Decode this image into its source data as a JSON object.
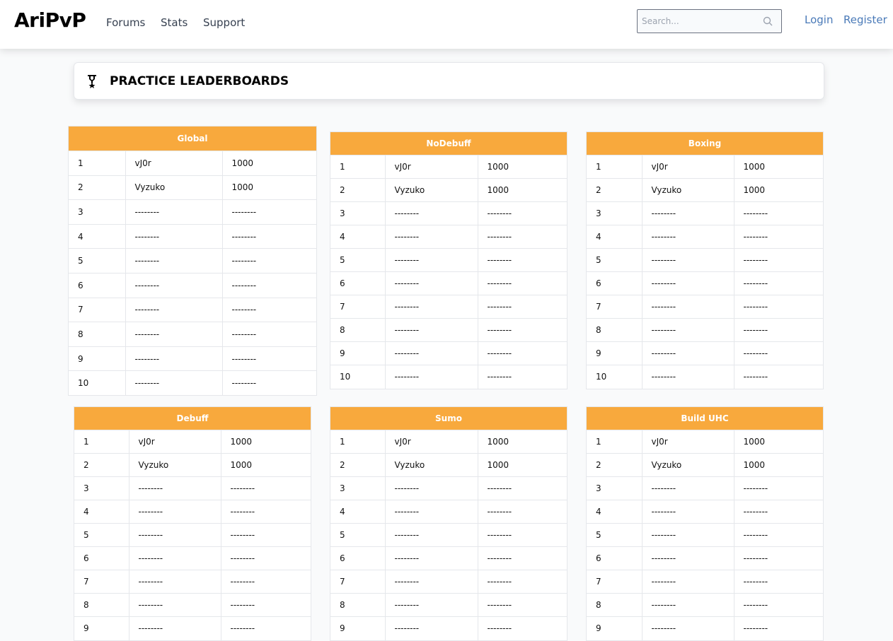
{
  "nav": {
    "logo": "AriPvP",
    "links": [
      "Forums",
      "Stats",
      "Support"
    ],
    "search_placeholder": "Search...",
    "login": "Login",
    "register": "Register"
  },
  "page_title": "PRACTICE LEADERBOARDS",
  "colors": {
    "header": "#f8a93d",
    "link": "#4a7ab8"
  },
  "boards": [
    {
      "name": "Global",
      "rows": [
        [
          "1",
          "vJ0r",
          "1000"
        ],
        [
          "2",
          "Vyzuko",
          "1000"
        ],
        [
          "3",
          "--------",
          "--------"
        ],
        [
          "4",
          "--------",
          "--------"
        ],
        [
          "5",
          "--------",
          "--------"
        ],
        [
          "6",
          "--------",
          "--------"
        ],
        [
          "7",
          "--------",
          "--------"
        ],
        [
          "8",
          "--------",
          "--------"
        ],
        [
          "9",
          "--------",
          "--------"
        ],
        [
          "10",
          "--------",
          "--------"
        ]
      ]
    },
    {
      "name": "NoDebuff",
      "rows": [
        [
          "1",
          "vJ0r",
          "1000"
        ],
        [
          "2",
          "Vyzuko",
          "1000"
        ],
        [
          "3",
          "--------",
          "--------"
        ],
        [
          "4",
          "--------",
          "--------"
        ],
        [
          "5",
          "--------",
          "--------"
        ],
        [
          "6",
          "--------",
          "--------"
        ],
        [
          "7",
          "--------",
          "--------"
        ],
        [
          "8",
          "--------",
          "--------"
        ],
        [
          "9",
          "--------",
          "--------"
        ],
        [
          "10",
          "--------",
          "--------"
        ]
      ]
    },
    {
      "name": "Boxing",
      "rows": [
        [
          "1",
          "vJ0r",
          "1000"
        ],
        [
          "2",
          "Vyzuko",
          "1000"
        ],
        [
          "3",
          "--------",
          "--------"
        ],
        [
          "4",
          "--------",
          "--------"
        ],
        [
          "5",
          "--------",
          "--------"
        ],
        [
          "6",
          "--------",
          "--------"
        ],
        [
          "7",
          "--------",
          "--------"
        ],
        [
          "8",
          "--------",
          "--------"
        ],
        [
          "9",
          "--------",
          "--------"
        ],
        [
          "10",
          "--------",
          "--------"
        ]
      ]
    },
    {
      "name": "Debuff",
      "rows": [
        [
          "1",
          "vJ0r",
          "1000"
        ],
        [
          "2",
          "Vyzuko",
          "1000"
        ],
        [
          "3",
          "--------",
          "--------"
        ],
        [
          "4",
          "--------",
          "--------"
        ],
        [
          "5",
          "--------",
          "--------"
        ],
        [
          "6",
          "--------",
          "--------"
        ],
        [
          "7",
          "--------",
          "--------"
        ],
        [
          "8",
          "--------",
          "--------"
        ],
        [
          "9",
          "--------",
          "--------"
        ]
      ]
    },
    {
      "name": "Sumo",
      "rows": [
        [
          "1",
          "vJ0r",
          "1000"
        ],
        [
          "2",
          "Vyzuko",
          "1000"
        ],
        [
          "3",
          "--------",
          "--------"
        ],
        [
          "4",
          "--------",
          "--------"
        ],
        [
          "5",
          "--------",
          "--------"
        ],
        [
          "6",
          "--------",
          "--------"
        ],
        [
          "7",
          "--------",
          "--------"
        ],
        [
          "8",
          "--------",
          "--------"
        ],
        [
          "9",
          "--------",
          "--------"
        ]
      ]
    },
    {
      "name": "Build UHC",
      "rows": [
        [
          "1",
          "vJ0r",
          "1000"
        ],
        [
          "2",
          "Vyzuko",
          "1000"
        ],
        [
          "3",
          "--------",
          "--------"
        ],
        [
          "4",
          "--------",
          "--------"
        ],
        [
          "5",
          "--------",
          "--------"
        ],
        [
          "6",
          "--------",
          "--------"
        ],
        [
          "7",
          "--------",
          "--------"
        ],
        [
          "8",
          "--------",
          "--------"
        ],
        [
          "9",
          "--------",
          "--------"
        ]
      ]
    }
  ]
}
